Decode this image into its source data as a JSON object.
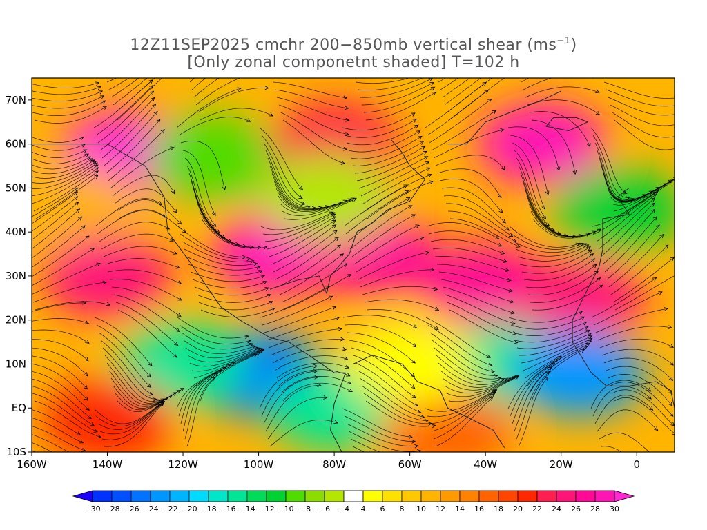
{
  "title": {
    "line1": "12Z11SEP2025 cmchr 200−850mb vertical shear (ms",
    "unit_superscript": "−1",
    "line1_end": ")",
    "line2": "[Only zonal componetnt shaded] T=102 h"
  },
  "map": {
    "lon_range": [
      -160,
      10
    ],
    "lat_range": [
      -10,
      75
    ],
    "x_ticks": [
      {
        "value": -160,
        "label": "160W"
      },
      {
        "value": -140,
        "label": "140W"
      },
      {
        "value": -120,
        "label": "120W"
      },
      {
        "value": -100,
        "label": "100W"
      },
      {
        "value": -80,
        "label": "80W"
      },
      {
        "value": -60,
        "label": "60W"
      },
      {
        "value": -40,
        "label": "40W"
      },
      {
        "value": -20,
        "label": "20W"
      },
      {
        "value": 0,
        "label": "0"
      }
    ],
    "y_ticks": [
      {
        "value": 70,
        "label": "70N"
      },
      {
        "value": 60,
        "label": "60N"
      },
      {
        "value": 50,
        "label": "50N"
      },
      {
        "value": 40,
        "label": "40N"
      },
      {
        "value": 30,
        "label": "30N"
      },
      {
        "value": 20,
        "label": "20N"
      },
      {
        "value": 10,
        "label": "10N"
      },
      {
        "value": 0,
        "label": "EQ"
      },
      {
        "value": -10,
        "label": "10S"
      }
    ],
    "shading_regions": [
      {
        "lon": -135,
        "lat": 58,
        "value": 30
      },
      {
        "lon": -112,
        "lat": 57,
        "value": -10
      },
      {
        "lon": -148,
        "lat": 45,
        "value": 10
      },
      {
        "lon": -95,
        "lat": 35,
        "value": 28
      },
      {
        "lon": -70,
        "lat": 35,
        "value": 26
      },
      {
        "lon": -40,
        "lat": 28,
        "value": 26
      },
      {
        "lon": -15,
        "lat": 25,
        "value": 24
      },
      {
        "lon": -25,
        "lat": 60,
        "value": 28
      },
      {
        "lon": -80,
        "lat": 60,
        "value": 22
      },
      {
        "lon": -82,
        "lat": 48,
        "value": -6
      },
      {
        "lon": -5,
        "lat": 45,
        "value": -12
      },
      {
        "lon": -100,
        "lat": 8,
        "value": -26
      },
      {
        "lon": -120,
        "lat": 10,
        "value": -16
      },
      {
        "lon": -80,
        "lat": 0,
        "value": -16
      },
      {
        "lon": -35,
        "lat": 10,
        "value": -16
      },
      {
        "lon": -15,
        "lat": 8,
        "value": -24
      },
      {
        "lon": -140,
        "lat": -3,
        "value": 20
      },
      {
        "lon": -50,
        "lat": -5,
        "value": 16
      },
      {
        "lon": -60,
        "lat": 10,
        "value": 4
      },
      {
        "lon": -140,
        "lat": 30,
        "value": 24
      }
    ]
  },
  "colorbar": {
    "levels": [
      -30,
      -28,
      -26,
      -24,
      -22,
      -20,
      -18,
      -16,
      -14,
      -12,
      -10,
      -8,
      -6,
      -4,
      4,
      6,
      8,
      10,
      12,
      14,
      16,
      18,
      20,
      22,
      24,
      26,
      28,
      30
    ],
    "labels": [
      "−30",
      "−28",
      "−26",
      "−24",
      "−22",
      "−20",
      "−18",
      "−16",
      "−14",
      "−12",
      "−10",
      "−8",
      "−6",
      "−4",
      "4",
      "6",
      "8",
      "10",
      "12",
      "14",
      "16",
      "18",
      "20",
      "22",
      "24",
      "26",
      "28",
      "30"
    ],
    "colors": [
      "#1e00ff",
      "#0032ff",
      "#0050ff",
      "#0073ff",
      "#0096ff",
      "#00b4ff",
      "#00dcff",
      "#00e6c8",
      "#00e696",
      "#00dc5a",
      "#00d232",
      "#50dc00",
      "#8cdc00",
      "#b4e600",
      "#ffffff",
      "#ffff00",
      "#ffe100",
      "#ffc800",
      "#ffb400",
      "#ff9b00",
      "#ff8200",
      "#ff6400",
      "#ff4600",
      "#ff2800",
      "#ff1e50",
      "#ff1478",
      "#ff0a96",
      "#ff14b4",
      "#ff28d2"
    ]
  }
}
